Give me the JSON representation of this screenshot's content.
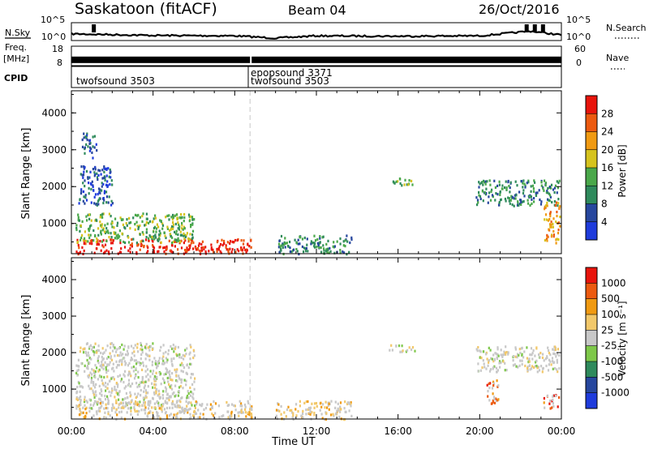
{
  "header": {
    "station": "Saskatoon (fitACF)",
    "beam": "Beam 04",
    "date": "26/Oct/2016"
  },
  "side_labels": {
    "nsky": "N.Sky",
    "freq": "Freq.",
    "freq_unit": "[MHz]",
    "cpid": "CPID",
    "nsearch": "N.Search",
    "nave": "Nave"
  },
  "cpid_labels": {
    "first": "twofsound 3503",
    "second": "epopsound 3371",
    "third": "twofsound 3503"
  },
  "colors": {
    "power": [
      "#1f3cdc",
      "#27479e",
      "#2f8a5c",
      "#4aa84a",
      "#d6c31e",
      "#f09a12",
      "#ec5a10",
      "#e8140c"
    ],
    "velocity": [
      "#e8140c",
      "#ec5a10",
      "#f09a12",
      "#f2c86a",
      "#c8c8c8",
      "#7ec84a",
      "#2f8a5c",
      "#27479e",
      "#1f3cdc"
    ]
  },
  "chart_data": [
    {
      "type": "line",
      "title": "",
      "series": [
        {
          "name": "N.Sky",
          "x": [
            "00:00",
            "04:00",
            "08:00",
            "10:00",
            "12:00",
            "16:00",
            "20:00",
            "22:30",
            "24:00"
          ],
          "values": [
            17,
            13,
            12,
            6,
            12,
            11,
            12,
            24,
            14
          ]
        }
      ],
      "ylabel_left": "N.Sky",
      "yticks_left": [
        "10^5",
        "10^0"
      ],
      "ylabel_right": "N.Search",
      "yticks_right": [
        "10^5",
        "10^0"
      ]
    },
    {
      "type": "line",
      "title": "",
      "series": [
        {
          "name": "Freq.",
          "x": [
            "00:00",
            "08:40",
            "24:00"
          ],
          "values": [
            11,
            11,
            11
          ]
        }
      ],
      "ylabel_left": "Freq. [MHz]",
      "yticks_left": [
        "18",
        "8"
      ],
      "ylabel_right": "Nave",
      "yticks_right": [
        "60",
        "0"
      ]
    },
    {
      "type": "heatmap",
      "title": "",
      "ylabel": "Slant Range [km]",
      "yticks": [
        1000,
        2000,
        3000,
        4000
      ],
      "ylim": [
        180,
        4600
      ],
      "xticks": [
        "00:00",
        "04:00",
        "08:00",
        "12:00",
        "16:00",
        "20:00",
        "00:00"
      ],
      "xlim_hours": [
        0,
        24
      ],
      "colorbar_label": "Power [dB]",
      "colorbar_ticks": [
        "4",
        "8",
        "12",
        "16",
        "20",
        "24",
        "28"
      ],
      "patches": [
        {
          "t0": 0.2,
          "t1": 8.8,
          "r0": 200,
          "r1": 600,
          "level": 7
        },
        {
          "t0": 0.2,
          "t1": 6.0,
          "r0": 500,
          "r1": 1300,
          "level": 3
        },
        {
          "t0": 0.3,
          "t1": 2.0,
          "r0": 1500,
          "r1": 2600,
          "level": 1
        },
        {
          "t0": 0.5,
          "t1": 1.2,
          "r0": 2800,
          "r1": 3500,
          "level": 1
        },
        {
          "t0": 10.0,
          "t1": 13.7,
          "r0": 200,
          "r1": 700,
          "level": 2
        },
        {
          "t0": 15.5,
          "t1": 16.8,
          "r0": 2050,
          "r1": 2250,
          "level": 3
        },
        {
          "t0": 19.8,
          "t1": 23.9,
          "r0": 1500,
          "r1": 2200,
          "level": 2
        },
        {
          "t0": 23.1,
          "t1": 23.9,
          "r0": 500,
          "r1": 1600,
          "level": 5
        }
      ]
    },
    {
      "type": "heatmap",
      "title": "",
      "ylabel": "Slant Range [km]",
      "yticks": [
        1000,
        2000,
        3000,
        4000
      ],
      "ylim": [
        180,
        4600
      ],
      "xticks": [
        "00:00",
        "04:00",
        "08:00",
        "12:00",
        "16:00",
        "20:00",
        "00:00"
      ],
      "xlim_hours": [
        0,
        24
      ],
      "xlabel": "Time UT",
      "colorbar_label": "Velocity [m s⁻¹]",
      "colorbar_ticks": [
        "1000",
        "500",
        "100",
        "25",
        "-25",
        "-100",
        "-500",
        "-1000"
      ],
      "patches": [
        {
          "t0": 0.2,
          "t1": 8.8,
          "r0": 200,
          "r1": 700,
          "level": 3
        },
        {
          "t0": 0.2,
          "t1": 6.0,
          "r0": 500,
          "r1": 2300,
          "level": 4
        },
        {
          "t0": 10.0,
          "t1": 13.7,
          "r0": 200,
          "r1": 700,
          "level": 3
        },
        {
          "t0": 15.5,
          "t1": 16.8,
          "r0": 2050,
          "r1": 2250,
          "level": 4
        },
        {
          "t0": 19.8,
          "t1": 23.9,
          "r0": 1500,
          "r1": 2200,
          "level": 4
        },
        {
          "t0": 20.3,
          "t1": 20.9,
          "r0": 600,
          "r1": 1300,
          "level": 1
        },
        {
          "t0": 23.1,
          "t1": 23.9,
          "r0": 500,
          "r1": 900,
          "level": 1
        }
      ]
    }
  ]
}
